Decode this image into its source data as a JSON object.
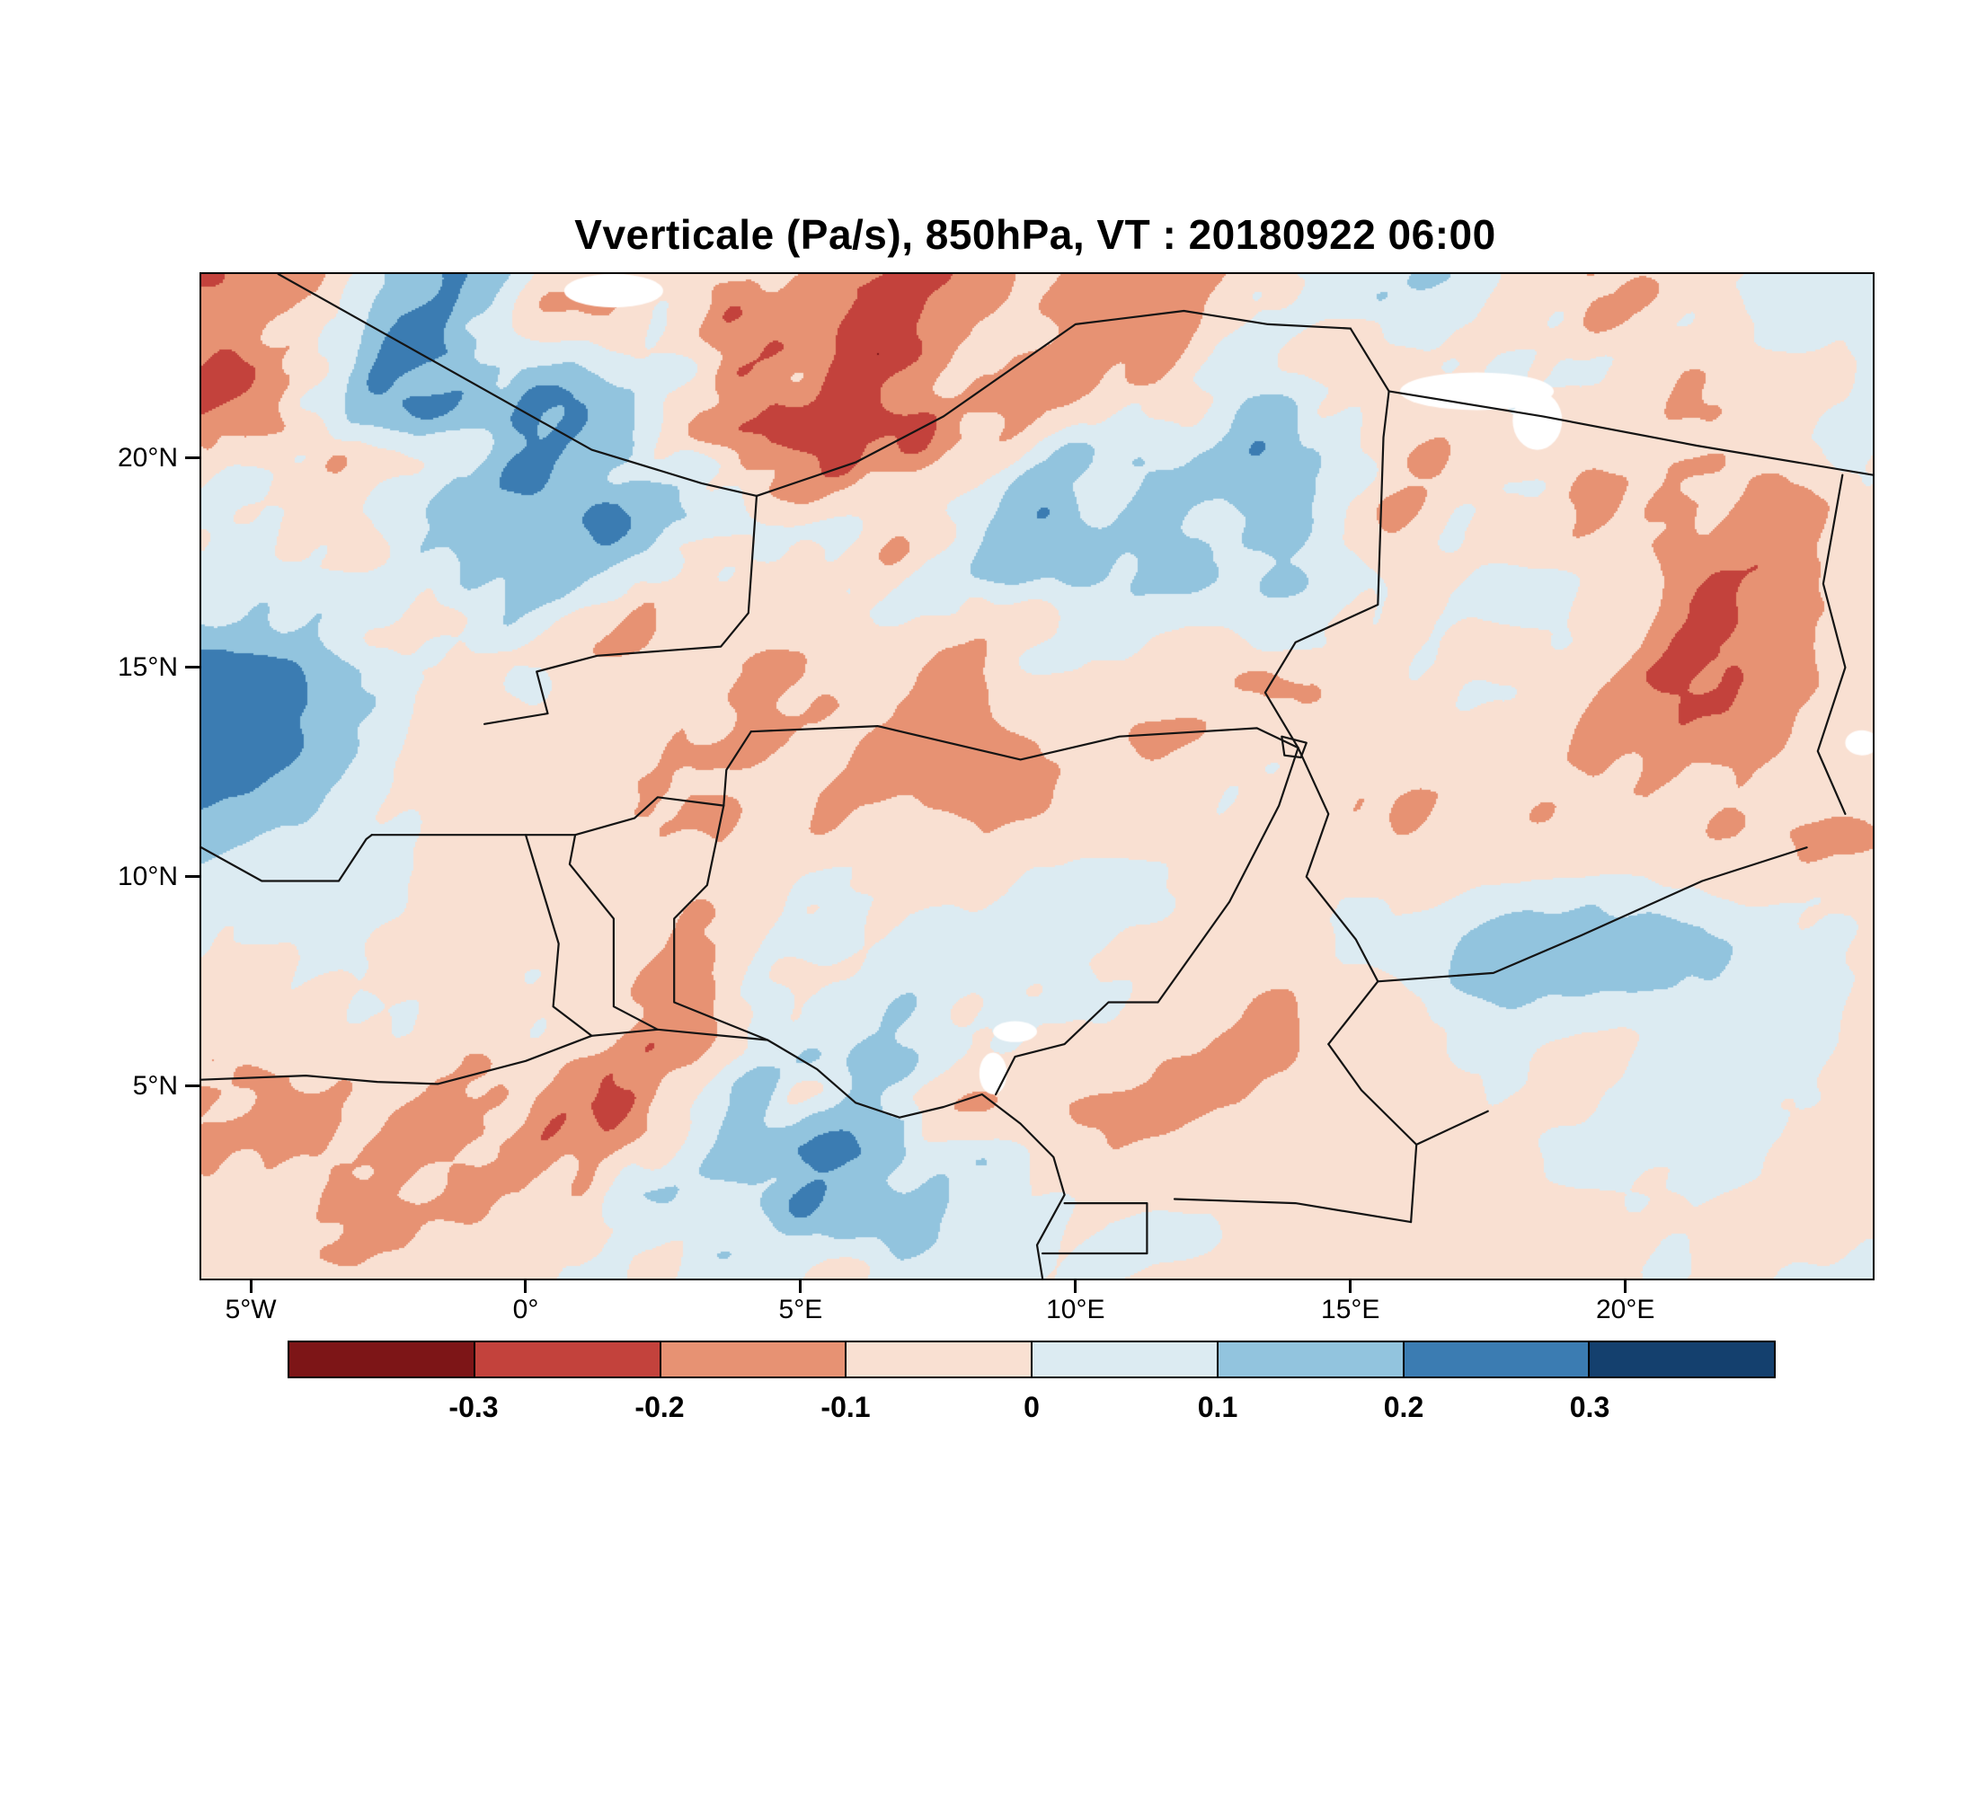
{
  "figure": {
    "title": "Vverticale (Pa/s), 850hPa, VT : 20180922  06:00"
  },
  "chart_data": {
    "type": "heatmap",
    "title": "Vverticale (Pa/s), 850hPa, VT : 20180922  06:00",
    "variable": "Vverticale",
    "units": "Pa/s",
    "pressure_level": "850hPa",
    "valid_time_label": "VT : 20180922  06:00",
    "extent": {
      "lon_min": -5.9,
      "lon_max": 24.5,
      "lat_min": 0.4,
      "lat_max": 24.4
    },
    "lon_ticks": [
      {
        "value": -5,
        "label": "5°W"
      },
      {
        "value": 0,
        "label": "0°"
      },
      {
        "value": 5,
        "label": "5°E"
      },
      {
        "value": 10,
        "label": "10°E"
      },
      {
        "value": 15,
        "label": "15°E"
      },
      {
        "value": 20,
        "label": "20°E"
      }
    ],
    "lat_ticks": [
      {
        "value": 5,
        "label": "5°N"
      },
      {
        "value": 10,
        "label": "10°N"
      },
      {
        "value": 15,
        "label": "15°N"
      },
      {
        "value": 20,
        "label": "20°N"
      }
    ],
    "colorbar": {
      "levels": [
        -0.3,
        -0.2,
        -0.1,
        0,
        0.1,
        0.2,
        0.3
      ],
      "tick_labels": [
        "-0.3",
        "-0.2",
        "-0.1",
        "0",
        "0.1",
        "0.2",
        "0.3"
      ],
      "colors": [
        "#7d1517",
        "#c3423c",
        "#e79273",
        "#f9e0d2",
        "#dcebf2",
        "#92c4de",
        "#3b7cb2",
        "#14406e"
      ]
    },
    "pattern_summary": [
      "Strong alternating dark-red (ascent) and dark-blue (descent) streaks over the Sahel north of 14N, west of 10E",
      "Mostly weak pale-pink / pale-blue values over central Nigeria, Chad basin 5N-13N",
      "Intense dark-red band along the Guinea coast near 4N-6N with embedded blue cells",
      "Dark blue maxima on the western edge near 13N-15N and an elongated blue streak near 17E-21E, 8N",
      "Scattered white cells indicate missing/undefined values"
    ],
    "coastline": [
      [
        -5.9,
        5.15
      ],
      [
        -4.0,
        5.25
      ],
      [
        -2.7,
        5.1
      ],
      [
        -1.6,
        5.05
      ],
      [
        0.0,
        5.6
      ],
      [
        1.2,
        6.2
      ],
      [
        2.4,
        6.35
      ],
      [
        4.4,
        6.1
      ],
      [
        5.3,
        5.4
      ],
      [
        6.0,
        4.6
      ],
      [
        6.8,
        4.25
      ],
      [
        7.6,
        4.5
      ],
      [
        8.3,
        4.8
      ],
      [
        9.0,
        4.1
      ],
      [
        9.6,
        3.3
      ],
      [
        9.8,
        2.4
      ],
      [
        9.3,
        1.2
      ],
      [
        9.4,
        0.4
      ]
    ],
    "borders": [
      [
        [
          -4.5,
          24.4
        ],
        [
          1.2,
          20.2
        ],
        [
          3.2,
          19.4
        ],
        [
          4.2,
          19.1
        ]
      ],
      [
        [
          4.2,
          19.1
        ],
        [
          6.0,
          19.9
        ],
        [
          7.6,
          21.0
        ],
        [
          10.0,
          23.2
        ],
        [
          11.97,
          23.52
        ],
        [
          13.5,
          23.2
        ],
        [
          15.0,
          23.1
        ]
      ],
      [
        [
          15.0,
          23.1
        ],
        [
          15.7,
          21.6
        ],
        [
          18.5,
          21.0
        ],
        [
          21.3,
          20.3
        ],
        [
          24.5,
          19.6
        ]
      ],
      [
        [
          15.7,
          21.6
        ],
        [
          15.6,
          20.5
        ],
        [
          15.5,
          16.5
        ],
        [
          14.0,
          15.6
        ],
        [
          13.45,
          14.4
        ],
        [
          14.05,
          13.08
        ]
      ],
      [
        [
          23.95,
          19.6
        ],
        [
          23.6,
          17.0
        ],
        [
          24.0,
          15.0
        ],
        [
          23.5,
          13.0
        ],
        [
          24.0,
          11.5
        ]
      ],
      [
        [
          4.2,
          19.1
        ],
        [
          4.05,
          16.3
        ],
        [
          3.55,
          15.5
        ],
        [
          1.3,
          15.28
        ],
        [
          0.2,
          14.9
        ],
        [
          0.4,
          13.9
        ],
        [
          -0.75,
          13.65
        ]
      ],
      [
        [
          -5.9,
          10.7
        ],
        [
          -4.8,
          9.9
        ],
        [
          -3.4,
          9.9
        ],
        [
          -2.9,
          10.9
        ],
        [
          -2.8,
          11.0
        ]
      ],
      [
        [
          -2.8,
          11.0
        ],
        [
          -0.7,
          11.0
        ],
        [
          0.9,
          11.0
        ],
        [
          1.98,
          11.4
        ],
        [
          2.4,
          11.9
        ],
        [
          3.6,
          11.7
        ],
        [
          3.65,
          12.55
        ],
        [
          4.1,
          13.47
        ]
      ],
      [
        [
          1.2,
          6.2
        ],
        [
          0.5,
          6.9
        ],
        [
          0.6,
          8.4
        ],
        [
          0.0,
          11.0
        ]
      ],
      [
        [
          2.4,
          6.35
        ],
        [
          1.6,
          6.9
        ],
        [
          1.6,
          9.0
        ],
        [
          0.8,
          10.3
        ],
        [
          0.9,
          11.0
        ]
      ],
      [
        [
          4.4,
          6.1
        ],
        [
          2.7,
          7.0
        ],
        [
          2.7,
          9.0
        ],
        [
          3.3,
          9.8
        ],
        [
          3.6,
          11.7
        ]
      ],
      [
        [
          4.1,
          13.47
        ],
        [
          6.4,
          13.6
        ],
        [
          9.0,
          12.8
        ],
        [
          10.8,
          13.35
        ],
        [
          13.3,
          13.55
        ],
        [
          14.05,
          13.08
        ]
      ],
      [
        [
          14.05,
          13.08
        ],
        [
          14.6,
          11.5
        ],
        [
          14.2,
          10.0
        ],
        [
          15.1,
          8.5
        ],
        [
          15.5,
          7.5
        ],
        [
          14.6,
          6.0
        ]
      ],
      [
        [
          14.05,
          13.08
        ],
        [
          13.7,
          11.7
        ],
        [
          12.8,
          9.4
        ],
        [
          11.5,
          7.0
        ],
        [
          10.6,
          7.0
        ],
        [
          9.8,
          6.0
        ],
        [
          8.9,
          5.7
        ],
        [
          8.55,
          4.8
        ]
      ],
      [
        [
          11.8,
          2.3
        ],
        [
          14.0,
          2.2
        ],
        [
          16.1,
          1.75
        ]
      ],
      [
        [
          16.1,
          1.75
        ],
        [
          16.2,
          3.6
        ],
        [
          17.5,
          4.4
        ]
      ],
      [
        [
          14.6,
          6.0
        ],
        [
          15.2,
          4.9
        ],
        [
          16.2,
          3.6
        ]
      ],
      [
        [
          9.4,
          1.0
        ],
        [
          11.3,
          1.0
        ],
        [
          11.3,
          2.2
        ],
        [
          9.8,
          2.2
        ]
      ],
      [
        [
          15.5,
          7.5
        ],
        [
          17.6,
          7.7
        ],
        [
          19.2,
          8.6
        ],
        [
          21.4,
          9.9
        ],
        [
          23.3,
          10.7
        ]
      ]
    ],
    "lake": [
      [
        13.75,
        13.35
      ],
      [
        14.2,
        13.2
      ],
      [
        14.1,
        12.85
      ],
      [
        13.8,
        12.9
      ]
    ],
    "missing_data_patches": [
      {
        "lon": 1.6,
        "lat": 24.0,
        "rlon": 0.9,
        "rlat": 0.4
      },
      {
        "lon": 17.3,
        "lat": 21.6,
        "rlon": 1.4,
        "rlat": 0.45
      },
      {
        "lon": 18.4,
        "lat": 20.9,
        "rlon": 0.45,
        "rlat": 0.7
      },
      {
        "lon": 8.9,
        "lat": 6.3,
        "rlon": 0.4,
        "rlat": 0.25
      },
      {
        "lon": 8.5,
        "lat": 5.3,
        "rlon": 0.25,
        "rlat": 0.5
      },
      {
        "lon": 24.3,
        "lat": 13.2,
        "rlon": 0.3,
        "rlat": 0.3
      }
    ]
  }
}
